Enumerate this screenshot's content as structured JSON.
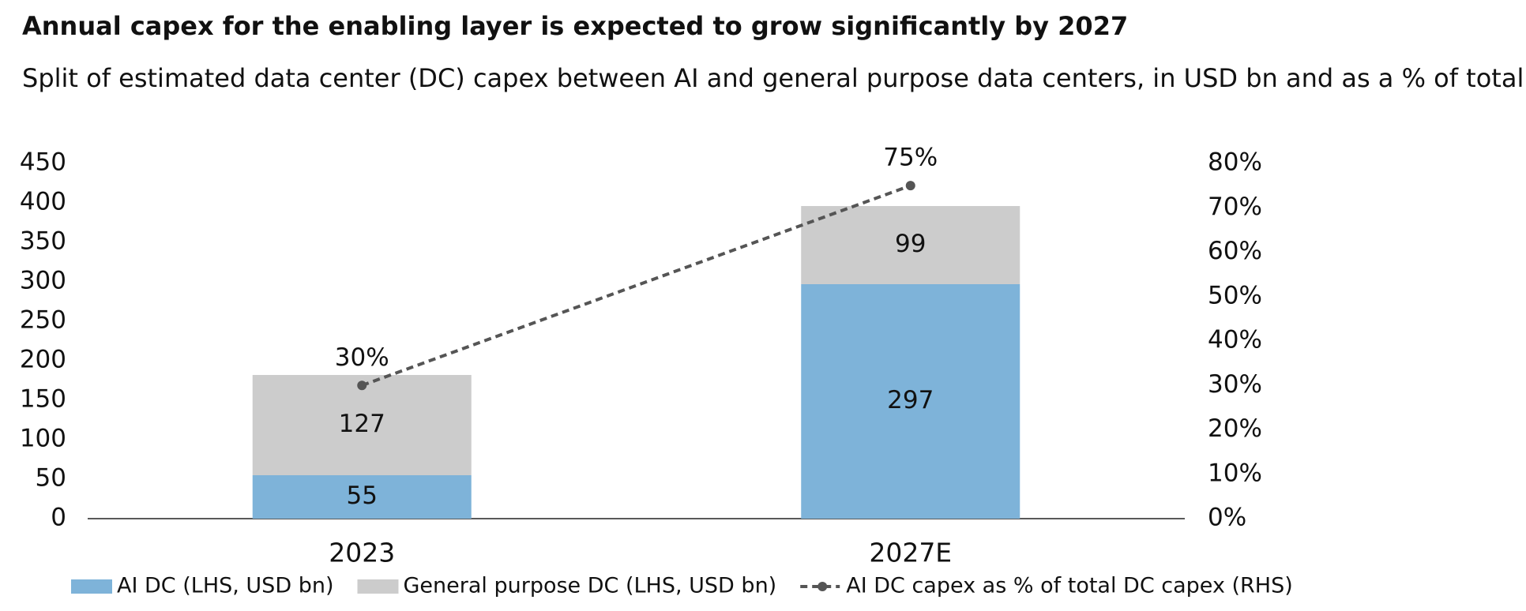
{
  "chart_data": {
    "type": "bar",
    "title": "Annual capex for the enabling layer is expected to grow significantly by 2027",
    "subtitle": "Split of estimated data center (DC) capex between AI and general purpose data centers, in USD bn and as a % of total",
    "stacked": true,
    "categories": [
      "2023",
      "2027E"
    ],
    "series": [
      {
        "name": "AI DC (LHS, USD bn)",
        "color": "#7eb3d9",
        "values": [
          55,
          297
        ]
      },
      {
        "name": "General purpose DC (LHS, USD bn)",
        "color": "#cccccc",
        "values": [
          127,
          99
        ]
      },
      {
        "name": "AI DC capex as % of total DC capex (RHS)",
        "color": "#555555",
        "type": "line",
        "axis": "y2",
        "dashed": true,
        "values": [
          30,
          75
        ],
        "value_labels": [
          "30%",
          "75%"
        ]
      }
    ],
    "ylim": [
      0,
      450
    ],
    "yticks": [
      0,
      50,
      100,
      150,
      200,
      250,
      300,
      350,
      400,
      450
    ],
    "y2lim": [
      0,
      80
    ],
    "y2ticks": [
      {
        "value": 0,
        "label": "0%"
      },
      {
        "value": 10,
        "label": "10%"
      },
      {
        "value": 20,
        "label": "20%"
      },
      {
        "value": 30,
        "label": "30%"
      },
      {
        "value": 40,
        "label": "40%"
      },
      {
        "value": 50,
        "label": "50%"
      },
      {
        "value": 60,
        "label": "60%"
      },
      {
        "value": 70,
        "label": "70%"
      },
      {
        "value": 80,
        "label": "80%"
      }
    ],
    "grid": false,
    "legend": "bottom"
  }
}
